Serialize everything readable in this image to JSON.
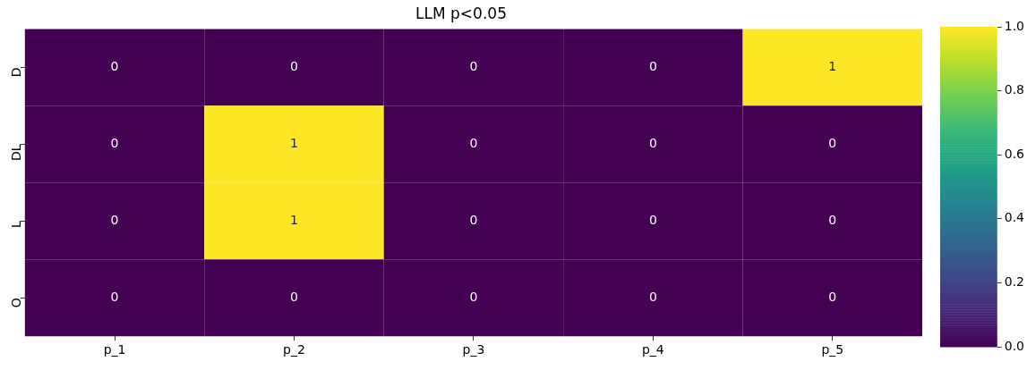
{
  "chart_data": {
    "type": "heatmap",
    "title": "LLM p<0.05",
    "categories": [
      "p_1",
      "p_2",
      "p_3",
      "p_4",
      "p_5"
    ],
    "y_categories": [
      "D",
      "DL",
      "L",
      "O"
    ],
    "cells": [
      [
        0,
        0,
        0,
        0,
        1
      ],
      [
        0,
        1,
        0,
        0,
        0
      ],
      [
        0,
        1,
        0,
        0,
        0
      ],
      [
        0,
        0,
        0,
        0,
        0
      ]
    ],
    "data_labels": true,
    "clim": [
      0,
      1
    ],
    "cticks": [
      {
        "value": 0,
        "label": "0.0"
      },
      {
        "value": 0.2,
        "label": "0.2"
      },
      {
        "value": 0.4,
        "label": "0.4"
      },
      {
        "value": 0.6,
        "label": "0.6"
      },
      {
        "value": 0.8,
        "label": "0.8"
      },
      {
        "value": 1,
        "label": "1.0"
      }
    ]
  }
}
